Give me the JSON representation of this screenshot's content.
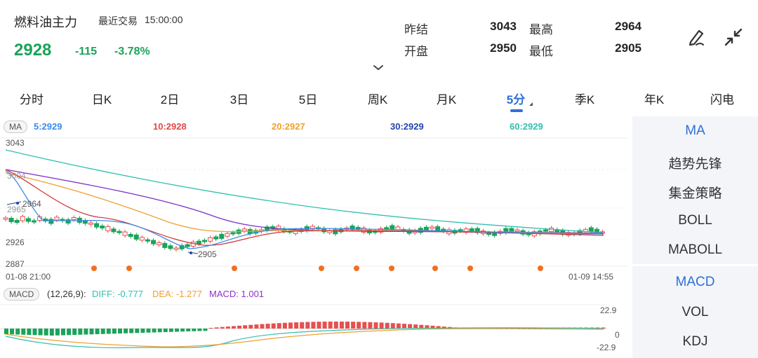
{
  "header": {
    "title": "燃料油主力",
    "trade_label": "最近交易",
    "trade_time": "15:00:00",
    "price": "2928",
    "change": "-115",
    "change_pct": "-3.78%",
    "stats": {
      "prev_settle_label": "昨结",
      "prev_settle": "3043",
      "high_label": "最高",
      "high": "2964",
      "open_label": "开盘",
      "open": "2950",
      "low_label": "最低",
      "low": "2905"
    },
    "icons": [
      "draw-pen-icon",
      "collapse-arrows-icon",
      "chevron-down-icon"
    ]
  },
  "tabs": [
    "分时",
    "日K",
    "2日",
    "3日",
    "5日",
    "周K",
    "月K",
    "5分",
    "季K",
    "年K",
    "闪电"
  ],
  "active_tab": "5分",
  "ma": {
    "badge": "MA",
    "ma5": "5:2929",
    "ma10": "10:2928",
    "ma20": "20:2927",
    "ma30": "30:2929",
    "ma60": "60:2929"
  },
  "colors": {
    "up": "#e84f4f",
    "down": "#1aa35a",
    "ma5": "#3b8be8",
    "ma10": "#e04848",
    "ma20": "#f0a030",
    "ma30": "#7a30c8",
    "ma60": "#30c0b0",
    "dot": "#f07020",
    "accent": "#2f6fd6"
  },
  "axis": {
    "y_top": "3043",
    "y_mid": "3004",
    "y_965": "2965",
    "y_926": "2926",
    "y_bottom": "2887",
    "start_time": "01-08 21:00",
    "end_time": "01-09 14:55",
    "high_marker": "2964",
    "low_marker": "2905"
  },
  "macd": {
    "badge": "MACD",
    "params": "(12,26,9):",
    "diff": "DIFF: -0.777",
    "dea": "DEA: -1.277",
    "macd": "MACD: 1.001",
    "y_top": "22.9",
    "y_zero": "0",
    "y_bottom": "-22.9"
  },
  "right_panel": {
    "main_items": [
      "MA",
      "趋势先锋",
      "集金策略",
      "BOLL",
      "MABOLL"
    ],
    "main_active": "MA",
    "sub_items": [
      "MACD",
      "VOL",
      "KDJ"
    ],
    "sub_active": "MACD"
  }
}
